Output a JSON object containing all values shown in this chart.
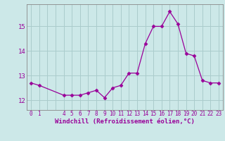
{
  "x": [
    0,
    1,
    4,
    5,
    6,
    7,
    8,
    9,
    10,
    11,
    12,
    13,
    14,
    15,
    16,
    17,
    18,
    19,
    20,
    21,
    22,
    23
  ],
  "y": [
    12.7,
    12.6,
    12.2,
    12.2,
    12.2,
    12.3,
    12.4,
    12.1,
    12.5,
    12.6,
    13.1,
    13.1,
    14.3,
    15.0,
    15.0,
    15.6,
    15.1,
    13.9,
    13.8,
    12.8,
    12.7,
    12.7
  ],
  "line_color": "#990099",
  "marker": "D",
  "marker_size": 2.5,
  "bg_color": "#cce8e8",
  "grid_color": "#aacccc",
  "xlabel": "Windchill (Refroidissement éolien,°C)",
  "xtick_labels": [
    "0",
    "1",
    "",
    "4",
    "5",
    "6",
    "7",
    "8",
    "9",
    "10",
    "11",
    "12",
    "13",
    "14",
    "15",
    "16",
    "17",
    "18",
    "19",
    "20",
    "21",
    "22",
    "23"
  ],
  "xtick_positions": [
    0,
    1,
    2,
    4,
    5,
    6,
    7,
    8,
    9,
    10,
    11,
    12,
    13,
    14,
    15,
    16,
    17,
    18,
    19,
    20,
    21,
    22,
    23
  ],
  "yticks": [
    12,
    13,
    14,
    15
  ],
  "ylim": [
    11.6,
    15.9
  ],
  "xlim": [
    -0.5,
    23.5
  ],
  "tick_color": "#990099",
  "tick_fontsize": 5.5,
  "xlabel_fontsize": 6.5,
  "linewidth": 0.9
}
